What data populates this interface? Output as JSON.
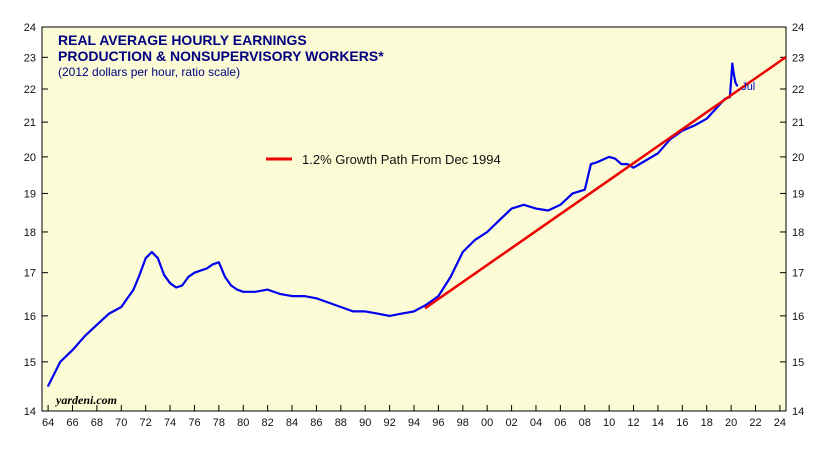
{
  "colors": {
    "background": "#fbfbd5",
    "earnings_line": "#0000ee",
    "growth_line": "#ee0000",
    "axis": "#000000"
  },
  "chart_data": {
    "type": "line",
    "title_line1": "REAL AVERAGE HOURLY EARNINGS",
    "title_line2": "PRODUCTION & NONSUPERVISORY WORKERS*",
    "subtitle": "(2012 dollars per hour, ratio scale)",
    "y_scale": "log",
    "ylim": [
      14,
      24
    ],
    "xlim": [
      1963.5,
      2024.5
    ],
    "y_ticks": [
      14,
      15,
      16,
      17,
      18,
      19,
      20,
      21,
      22,
      23,
      24
    ],
    "x_tick_labels": [
      "64",
      "66",
      "68",
      "70",
      "72",
      "74",
      "76",
      "78",
      "80",
      "82",
      "84",
      "86",
      "88",
      "90",
      "92",
      "94",
      "96",
      "98",
      "00",
      "02",
      "04",
      "06",
      "08",
      "10",
      "12",
      "14",
      "16",
      "18",
      "20",
      "22",
      "24"
    ],
    "legend": [
      {
        "label": "1.2% Growth Path From Dec 1994",
        "color": "#ee0000",
        "position": "top-center"
      }
    ],
    "annotation": "Jul",
    "source": "yardeni.com",
    "series": [
      {
        "x": [
          1964.0,
          1965.0,
          1966.0,
          1967.0,
          1968.0,
          1969.0,
          1970.0,
          1971.0,
          1971.5,
          1972.0,
          1972.5,
          1973.0,
          1973.5,
          1974.0,
          1974.5,
          1975.0,
          1975.5,
          1976.0,
          1976.5,
          1977.0,
          1977.5,
          1978.0,
          1978.5,
          1979.0,
          1979.5,
          1980.0,
          1981.0,
          1982.0,
          1983.0,
          1984.0,
          1985.0,
          1986.0,
          1987.0,
          1988.0,
          1989.0,
          1990.0,
          1991.0,
          1992.0,
          1993.0,
          1994.0,
          1995.0,
          1996.0,
          1997.0,
          1998.0,
          1999.0,
          2000.0,
          2001.0,
          2002.0,
          2003.0,
          2004.0,
          2005.0,
          2006.0,
          2007.0,
          2008.0,
          2008.5,
          2009.0,
          2010.0,
          2010.5,
          2011.0,
          2011.5,
          2012.0,
          2013.0,
          2014.0,
          2015.0,
          2016.0,
          2017.0,
          2018.0,
          2019.0,
          2019.5,
          2019.9,
          2020.1,
          2020.2,
          2020.35,
          2020.5
        ],
        "values": [
          14.5,
          15.0,
          15.25,
          15.55,
          15.8,
          16.05,
          16.2,
          16.6,
          16.95,
          17.35,
          17.5,
          17.35,
          16.95,
          16.75,
          16.65,
          16.7,
          16.9,
          17.0,
          17.05,
          17.1,
          17.2,
          17.25,
          16.9,
          16.7,
          16.6,
          16.55,
          16.55,
          16.6,
          16.5,
          16.45,
          16.45,
          16.4,
          16.3,
          16.2,
          16.1,
          16.1,
          16.05,
          16.0,
          16.05,
          16.1,
          16.25,
          16.45,
          16.9,
          17.5,
          17.8,
          18.0,
          18.3,
          18.6,
          18.7,
          18.6,
          18.55,
          18.7,
          19.0,
          19.1,
          19.8,
          19.85,
          20.0,
          19.95,
          19.8,
          19.8,
          19.7,
          19.9,
          20.1,
          20.5,
          20.75,
          20.9,
          21.1,
          21.5,
          21.7,
          21.75,
          22.8,
          22.5,
          22.2,
          22.1
        ]
      },
      {
        "name": "1.2% Growth Path From Dec 1994",
        "x": [
          1994.9,
          2024.5
        ],
        "values": [
          16.17,
          23.01
        ]
      }
    ]
  }
}
